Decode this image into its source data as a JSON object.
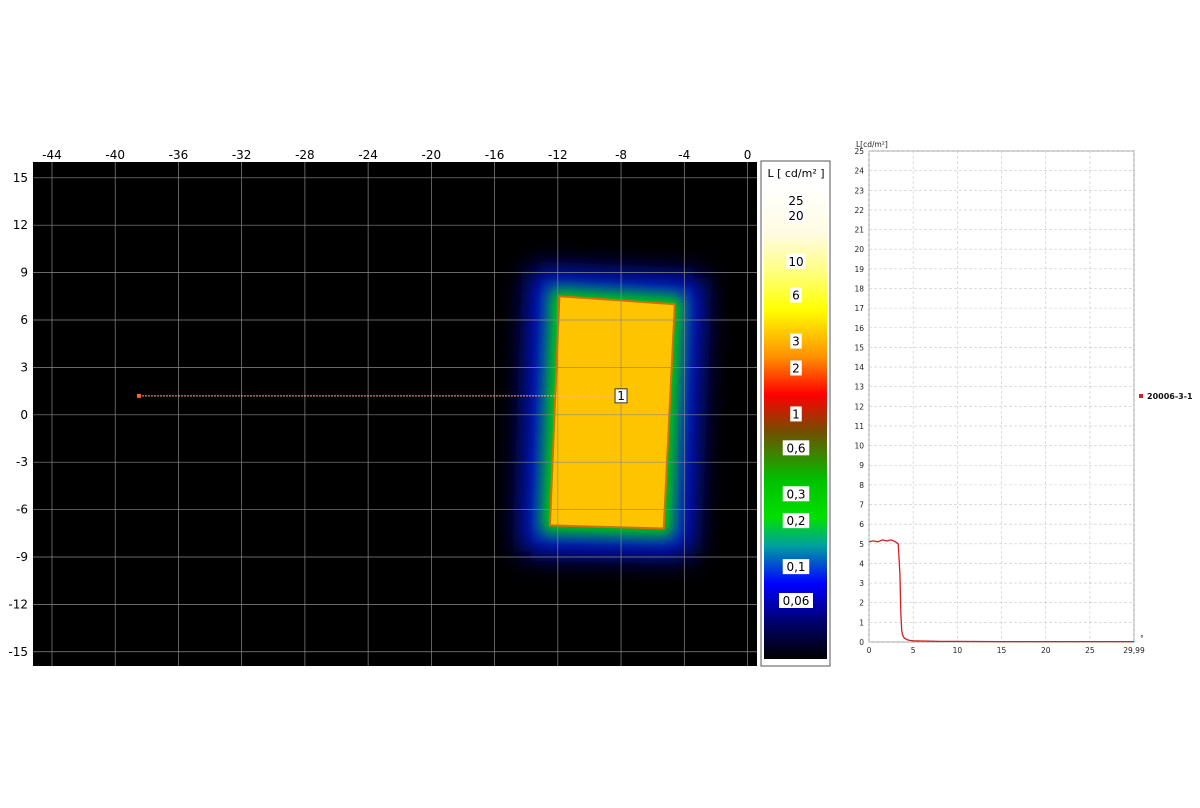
{
  "chart_data": [
    {
      "type": "heatmap",
      "x_ticks": [
        "-44",
        "-40",
        "-36",
        "-32",
        "-28",
        "-24",
        "-20",
        "-16",
        "-12",
        "-8",
        "-4",
        "0"
      ],
      "x_tick_values": [
        -44,
        -40,
        -36,
        -32,
        -28,
        -24,
        -20,
        -16,
        -12,
        -8,
        -4,
        0
      ],
      "y_ticks": [
        "15",
        "12",
        "9",
        "6",
        "3",
        "0",
        "-3",
        "-6",
        "-9",
        "-12",
        "-15"
      ],
      "y_tick_values": [
        15,
        12,
        9,
        6,
        3,
        0,
        -3,
        -6,
        -9,
        -12,
        -15
      ],
      "xlim": [
        -45.2,
        0.6
      ],
      "ylim": [
        -15.9,
        16.0
      ],
      "grid": true,
      "colorbar": {
        "title": "L [ cd/m² ]",
        "labels": [
          "25",
          "20",
          "10",
          "6",
          "3",
          "2",
          "1",
          "0,6",
          "0,3",
          "0,2",
          "0,1",
          "0,06"
        ],
        "label_values": [
          25,
          20,
          10,
          6,
          3,
          2,
          1,
          0.6,
          0.3,
          0.2,
          0.1,
          0.06
        ]
      },
      "region": {
        "corners": [
          [
            -11.9,
            7.5
          ],
          [
            -4.6,
            7.0
          ],
          [
            -5.3,
            -7.2
          ],
          [
            -12.5,
            -7.0
          ]
        ],
        "luminance": 5.1
      },
      "profile_line": {
        "label": "1",
        "start": [
          -38.5,
          1.2
        ],
        "end": [
          -8.0,
          1.2
        ]
      }
    },
    {
      "type": "line",
      "ylabel": "L[cd/m²]",
      "x_ticks": [
        "0",
        "5",
        "10",
        "15",
        "20",
        "25",
        "29,99"
      ],
      "x_tick_values": [
        0,
        5,
        10,
        15,
        20,
        25,
        29.99
      ],
      "y_ticks": [
        "0",
        "1",
        "2",
        "3",
        "4",
        "5",
        "6",
        "7",
        "8",
        "9",
        "10",
        "11",
        "12",
        "13",
        "14",
        "15",
        "16",
        "17",
        "18",
        "19",
        "20",
        "21",
        "22",
        "23",
        "24",
        "25"
      ],
      "xlim": [
        0,
        29.99
      ],
      "ylim": [
        0,
        25
      ],
      "x_axis_end_label": "°",
      "grid": true,
      "series": [
        {
          "name": "20006-3-1",
          "color": "#d42020",
          "x": [
            0,
            0.5,
            1,
            1.5,
            2,
            2.5,
            3,
            3.3,
            3.5,
            3.6,
            3.7,
            3.8,
            4.0,
            4.3,
            4.6,
            5,
            6,
            7,
            8,
            10,
            15,
            20,
            25,
            29.99
          ],
          "y": [
            5.1,
            5.15,
            5.1,
            5.2,
            5.15,
            5.2,
            5.1,
            5.0,
            3.5,
            1.5,
            0.6,
            0.35,
            0.2,
            0.12,
            0.08,
            0.06,
            0.05,
            0.04,
            0.03,
            0.03,
            0.02,
            0.02,
            0.02,
            0.02
          ]
        }
      ],
      "legend": "right"
    }
  ]
}
